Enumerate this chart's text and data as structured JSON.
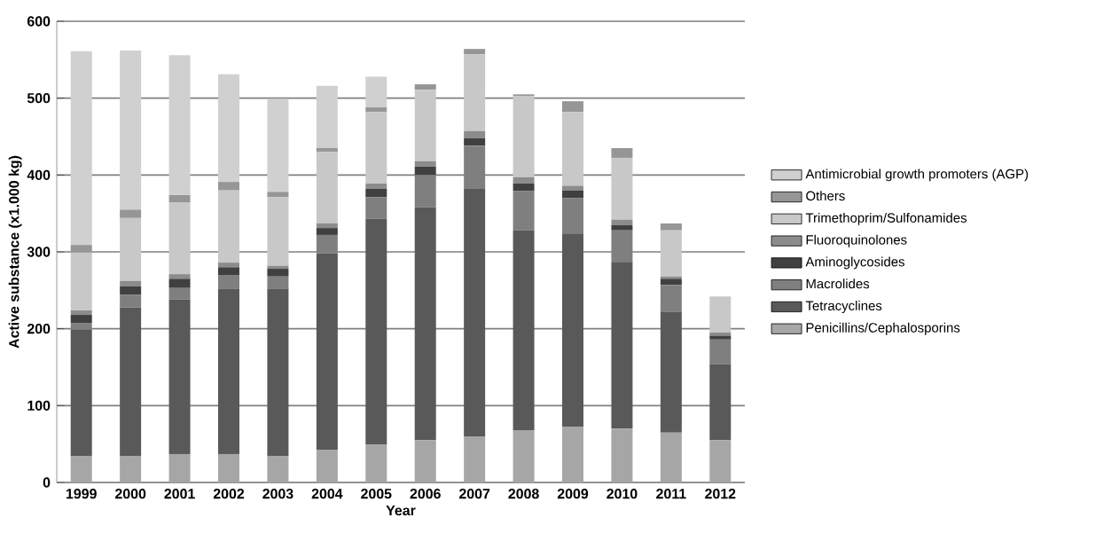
{
  "chart_data": {
    "type": "bar",
    "stacked": true,
    "xlabel": "Year",
    "ylabel": "Active substance (x1.000 kg)",
    "categories": [
      "1999",
      "2000",
      "2001",
      "2002",
      "2003",
      "2004",
      "2005",
      "2006",
      "2007",
      "2008",
      "2009",
      "2010",
      "2011",
      "2012"
    ],
    "ylim": [
      0,
      600
    ],
    "yticks": [
      0,
      100,
      200,
      300,
      400,
      500,
      600
    ],
    "grid": "y",
    "legend": "right",
    "series": [
      {
        "name": "Penicillins/Cephalosporins",
        "color": "#a6a6a6",
        "values": [
          34,
          34,
          37,
          37,
          34,
          42,
          49,
          55,
          60,
          68,
          72,
          70,
          65,
          55
        ]
      },
      {
        "name": "Tetracyclines",
        "color": "#595959",
        "values": [
          165,
          194,
          201,
          215,
          218,
          256,
          294,
          303,
          322,
          260,
          252,
          217,
          157,
          99
        ]
      },
      {
        "name": "Macrolides",
        "color": "#7f7f7f",
        "values": [
          8,
          16,
          15,
          18,
          16,
          24,
          28,
          42,
          56,
          51,
          46,
          41,
          35,
          32
        ]
      },
      {
        "name": "Aminoglycosides",
        "color": "#404040",
        "values": [
          11,
          11,
          12,
          10,
          10,
          9,
          11,
          11,
          10,
          10,
          10,
          7,
          8,
          5
        ]
      },
      {
        "name": "Fluoroquinolones",
        "color": "#8c8c8c",
        "values": [
          6,
          7,
          6,
          6,
          4,
          6,
          7,
          7,
          9,
          8,
          6,
          7,
          3,
          4
        ]
      },
      {
        "name": "Trimethoprim/Sulfonamides",
        "color": "#c8c8c8",
        "values": [
          75,
          82,
          93,
          94,
          89,
          93,
          93,
          93,
          100,
          106,
          96,
          80,
          60,
          47
        ]
      },
      {
        "name": "Others",
        "color": "#969696",
        "values": [
          10,
          11,
          10,
          11,
          7,
          5,
          6,
          7,
          7,
          2,
          14,
          13,
          9,
          0
        ]
      },
      {
        "name": "Antimicrobial growth promoters (AGP)",
        "color": "#d0d0d0",
        "values": [
          252,
          207,
          182,
          140,
          121,
          81,
          40,
          0,
          0,
          0,
          0,
          0,
          0,
          0
        ]
      }
    ]
  }
}
